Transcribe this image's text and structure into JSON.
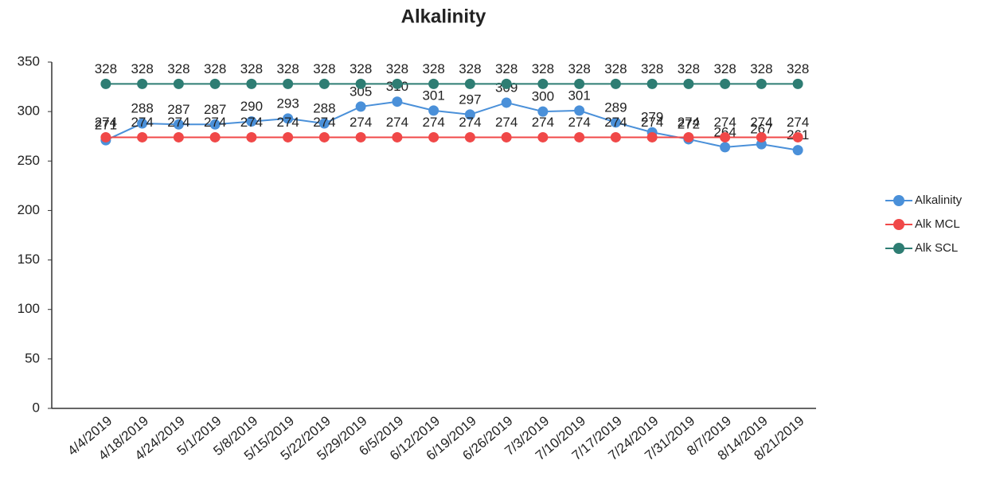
{
  "chart_data": {
    "type": "line",
    "title": "Alkalinity",
    "categories": [
      "4/4/2019",
      "4/18/2019",
      "4/24/2019",
      "5/1/2019",
      "5/8/2019",
      "5/15/2019",
      "5/22/2019",
      "5/29/2019",
      "6/5/2019",
      "6/12/2019",
      "6/19/2019",
      "6/26/2019",
      "7/3/2019",
      "7/10/2019",
      "7/17/2019",
      "7/24/2019",
      "7/31/2019",
      "8/7/2019",
      "8/14/2019",
      "8/21/2019"
    ],
    "series": [
      {
        "name": "Alkalinity",
        "color": "#4a90d9",
        "values": [
          271,
          288,
          287,
          287,
          290,
          293,
          288,
          305,
          310,
          301,
          297,
          309,
          300,
          301,
          289,
          279,
          272,
          264,
          267,
          261
        ]
      },
      {
        "name": "Alk MCL",
        "color": "#f04848",
        "values": [
          274,
          274,
          274,
          274,
          274,
          274,
          274,
          274,
          274,
          274,
          274,
          274,
          274,
          274,
          274,
          274,
          274,
          274,
          274,
          274
        ]
      },
      {
        "name": "Alk SCL",
        "color": "#2e7d73",
        "values": [
          328,
          328,
          328,
          328,
          328,
          328,
          328,
          328,
          328,
          328,
          328,
          328,
          328,
          328,
          328,
          328,
          328,
          328,
          328,
          328
        ]
      }
    ],
    "ylim": [
      0,
      350
    ],
    "yticks": [
      0,
      50,
      100,
      150,
      200,
      250,
      300,
      350
    ],
    "legend": "right"
  }
}
